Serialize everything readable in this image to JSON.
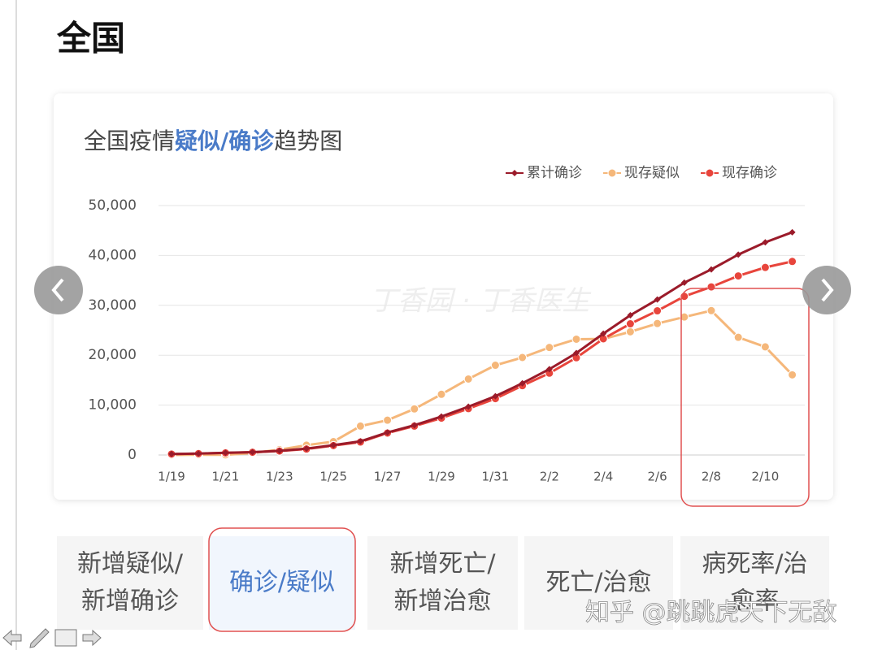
{
  "header": {
    "title": "全国"
  },
  "chart_data": {
    "type": "line",
    "title": [
      "全国疫情",
      "疑似/确诊",
      "趋势图"
    ],
    "watermark": "丁香园 · 丁香医生",
    "categories": [
      "1/19",
      null,
      "1/21",
      null,
      "1/23",
      null,
      "1/25",
      null,
      "1/27",
      null,
      "1/29",
      null,
      "1/31",
      null,
      "2/2",
      null,
      "2/4",
      null,
      "2/6",
      null,
      "2/8",
      null,
      "2/10",
      null
    ],
    "series": [
      {
        "name": "累计确诊",
        "color": "#9b1b2a",
        "marker": "diamond",
        "values": [
          198,
          291,
          440,
          571,
          830,
          1287,
          1975,
          2744,
          4515,
          5974,
          7711,
          9692,
          11791,
          14380,
          17205,
          20438,
          24324,
          28018,
          31161,
          34546,
          37198,
          40171,
          42638,
          44653
        ]
      },
      {
        "name": "现存疑似",
        "color": "#f5b77a",
        "marker": "circle",
        "values": [
          0,
          54,
          37,
          393,
          1072,
          1965,
          2684,
          5794,
          6973,
          9239,
          12167,
          15238,
          17988,
          19544,
          21558,
          23214,
          23260,
          24702,
          26359,
          27657,
          28942,
          23589,
          21675,
          16067
        ]
      },
      {
        "name": "现存确诊",
        "color": "#e8453c",
        "marker": "circle",
        "values": [
          190,
          280,
          420,
          550,
          800,
          1200,
          1900,
          2600,
          4400,
          5800,
          7400,
          9300,
          11300,
          13900,
          16400,
          19500,
          23300,
          26300,
          28900,
          31800,
          33700,
          35900,
          37600,
          38800
        ]
      }
    ],
    "ylim": [
      0,
      50000
    ],
    "yticks": [
      0,
      {
        "value": 10000,
        "label": "10,000"
      },
      {
        "value": 20000,
        "label": "20,000"
      },
      {
        "value": 30000,
        "label": "30,000"
      },
      {
        "value": 40000,
        "label": "40,000"
      },
      {
        "value": 50000,
        "label": "50,000"
      }
    ],
    "grid": true,
    "legend": "top-right"
  },
  "tabs": [
    [
      "新增疑似/",
      "新增确诊"
    ],
    [
      "确诊/疑似"
    ],
    [
      "新增死亡/",
      "新增治愈"
    ],
    [
      "死亡/治愈"
    ],
    [
      "病死率/治",
      "愈率"
    ]
  ],
  "footer": {
    "watermark": "知乎 @跳跳虎天下无敌"
  }
}
